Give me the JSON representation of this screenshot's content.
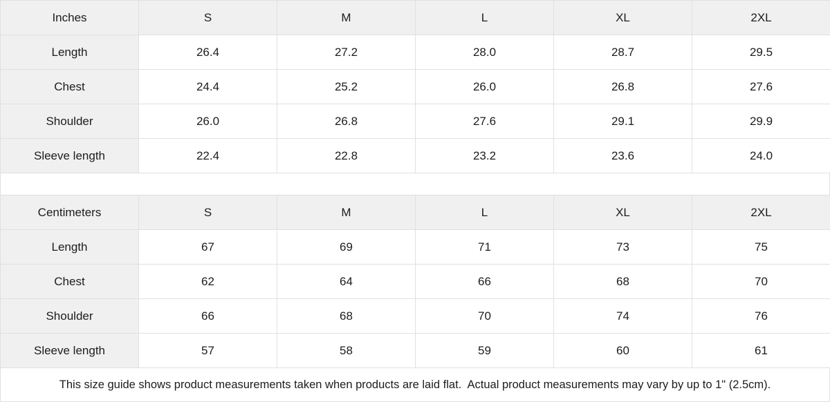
{
  "colors": {
    "header_bg": "#f0f0f0",
    "border": "#e0e0e0",
    "text": "#1c1c1c",
    "background": "#ffffff"
  },
  "tables": [
    {
      "unit_label": "Inches",
      "sizes": [
        "S",
        "M",
        "L",
        "XL",
        "2XL"
      ],
      "rows": [
        {
          "label": "Length",
          "values": [
            "26.4",
            "27.2",
            "28.0",
            "28.7",
            "29.5"
          ]
        },
        {
          "label": "Chest",
          "values": [
            "24.4",
            "25.2",
            "26.0",
            "26.8",
            "27.6"
          ]
        },
        {
          "label": "Shoulder",
          "values": [
            "26.0",
            "26.8",
            "27.6",
            "29.1",
            "29.9"
          ]
        },
        {
          "label": "Sleeve length",
          "values": [
            "22.4",
            "22.8",
            "23.2",
            "23.6",
            "24.0"
          ]
        }
      ]
    },
    {
      "unit_label": "Centimeters",
      "sizes": [
        "S",
        "M",
        "L",
        "XL",
        "2XL"
      ],
      "rows": [
        {
          "label": "Length",
          "values": [
            "67",
            "69",
            "71",
            "73",
            "75"
          ]
        },
        {
          "label": "Chest",
          "values": [
            "62",
            "64",
            "66",
            "68",
            "70"
          ]
        },
        {
          "label": "Shoulder",
          "values": [
            "66",
            "68",
            "70",
            "74",
            "76"
          ]
        },
        {
          "label": "Sleeve length",
          "values": [
            "57",
            "58",
            "59",
            "60",
            "61"
          ]
        }
      ]
    }
  ],
  "footer": {
    "note": "This size guide shows product measurements taken when products are laid flat.  Actual product measurements may vary by up to 1\" (2.5cm)."
  }
}
